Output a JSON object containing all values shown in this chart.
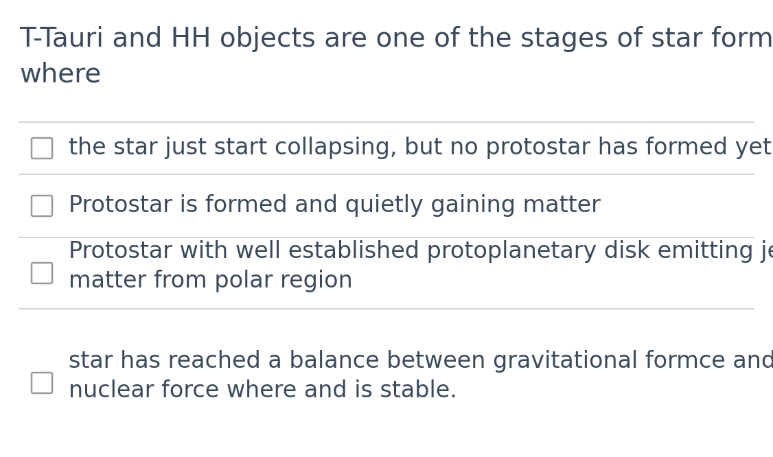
{
  "background_color": "#ffffff",
  "title_line1": "T-Tauri and HH objects are one of the stages of star formation",
  "title_line2": "where",
  "title_fontsize": 28,
  "title_color": "#3a4a5c",
  "options": [
    "the star just start collapsing, but no protostar has formed yet",
    "Protostar is formed and quietly gaining matter",
    "Protostar with well established protoplanetary disk emitting jets of\nmatter from polar region",
    "star has reached a balance between gravitational formce and\nnuclear force where and is stable."
  ],
  "option_fontsize": 24,
  "option_color": "#3a4a5c",
  "checkbox_color": "#999999",
  "separator_color": "#cccccc",
  "separator_lw": 1.2,
  "fig_width": 11.26,
  "fig_height": 6.66,
  "dpi": 100
}
